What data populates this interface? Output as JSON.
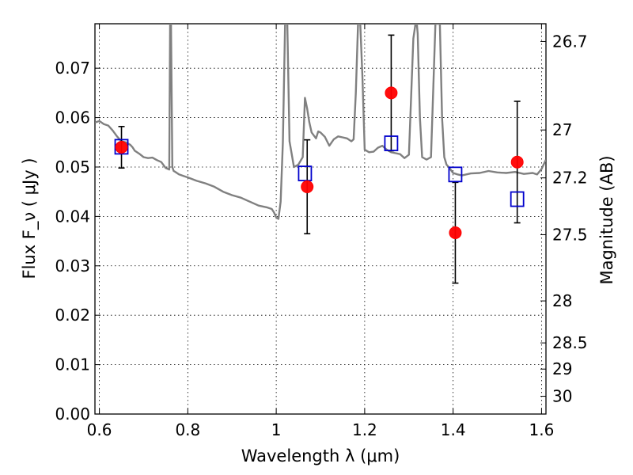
{
  "chart_data": {
    "type": "line",
    "xlabel": "Wavelength  λ (μm)",
    "ylabel": "Flux  F_ν ( μJy )",
    "ylabel_right": "Magnitude (AB)",
    "xlim": [
      0.59,
      1.61
    ],
    "ylim": [
      0.0,
      0.079
    ],
    "grid": true,
    "x_ticks": [
      0.6,
      0.8,
      1.0,
      1.2,
      1.4,
      1.6
    ],
    "x_tick_labels": [
      "0.6",
      "0.8",
      "1",
      "1.2",
      "1.4",
      "1.6"
    ],
    "y_ticks": [
      0.0,
      0.01,
      0.02,
      0.03,
      0.04,
      0.05,
      0.06,
      0.07
    ],
    "y_tick_labels": [
      "0.00",
      "0.01",
      "0.02",
      "0.03",
      "0.04",
      "0.05",
      "0.06",
      "0.07"
    ],
    "mag_ticks": [
      {
        "label": "26.7",
        "flux": 0.0754
      },
      {
        "label": "27",
        "flux": 0.0575
      },
      {
        "label": "27.2",
        "flux": 0.0478
      },
      {
        "label": "27.5",
        "flux": 0.0363
      },
      {
        "label": "28",
        "flux": 0.0229
      },
      {
        "label": "28.5",
        "flux": 0.0144
      },
      {
        "label": "29",
        "flux": 0.0091
      },
      {
        "label": "30",
        "flux": 0.0036
      }
    ],
    "series": [
      {
        "color": "#808080",
        "x": [
          0.59,
          0.6,
          0.61,
          0.62,
          0.63,
          0.64,
          0.65,
          0.66,
          0.67,
          0.675,
          0.68,
          0.69,
          0.7,
          0.71,
          0.72,
          0.73,
          0.74,
          0.75,
          0.758,
          0.76,
          0.762,
          0.765,
          0.768,
          0.772,
          0.78,
          0.79,
          0.8,
          0.82,
          0.84,
          0.86,
          0.88,
          0.9,
          0.92,
          0.94,
          0.96,
          0.98,
          0.99,
          0.995,
          1.0,
          1.005,
          1.01,
          1.015,
          1.02,
          1.022,
          1.025,
          1.03,
          1.04,
          1.05,
          1.06,
          1.065,
          1.07,
          1.075,
          1.08,
          1.09,
          1.095,
          1.1,
          1.11,
          1.12,
          1.13,
          1.14,
          1.15,
          1.16,
          1.17,
          1.175,
          1.18,
          1.185,
          1.19,
          1.195,
          1.2,
          1.21,
          1.22,
          1.23,
          1.24,
          1.25,
          1.26,
          1.27,
          1.28,
          1.29,
          1.3,
          1.31,
          1.315,
          1.318,
          1.32,
          1.325,
          1.33,
          1.34,
          1.35,
          1.36,
          1.37,
          1.375,
          1.38,
          1.385,
          1.39,
          1.4,
          1.41,
          1.42,
          1.44,
          1.46,
          1.48,
          1.5,
          1.52,
          1.54,
          1.56,
          1.58,
          1.59,
          1.6,
          1.61
        ],
        "y": [
          0.059,
          0.0593,
          0.0587,
          0.0584,
          0.0574,
          0.0562,
          0.0552,
          0.055,
          0.0545,
          0.054,
          0.0533,
          0.0527,
          0.052,
          0.0518,
          0.0519,
          0.0514,
          0.051,
          0.0498,
          0.0495,
          0.079,
          0.079,
          0.05,
          0.0492,
          0.049,
          0.0485,
          0.0482,
          0.0479,
          0.0472,
          0.0467,
          0.046,
          0.045,
          0.0443,
          0.0438,
          0.043,
          0.0422,
          0.0418,
          0.0415,
          0.0408,
          0.0398,
          0.0395,
          0.043,
          0.055,
          0.079,
          0.079,
          0.079,
          0.0552,
          0.05,
          0.0505,
          0.052,
          0.064,
          0.0618,
          0.059,
          0.057,
          0.0558,
          0.0572,
          0.057,
          0.0561,
          0.0543,
          0.0556,
          0.0562,
          0.056,
          0.0558,
          0.0552,
          0.0556,
          0.065,
          0.079,
          0.079,
          0.068,
          0.0535,
          0.053,
          0.0531,
          0.0539,
          0.0543,
          0.0535,
          0.053,
          0.0528,
          0.0526,
          0.0518,
          0.0525,
          0.076,
          0.079,
          0.079,
          0.077,
          0.06,
          0.052,
          0.0515,
          0.052,
          0.079,
          0.079,
          0.06,
          0.052,
          0.0505,
          0.05,
          0.0488,
          0.0485,
          0.0483,
          0.0487,
          0.0488,
          0.0492,
          0.0489,
          0.0488,
          0.049,
          0.0486,
          0.0488,
          0.0485,
          0.0496,
          0.0515
        ]
      }
    ],
    "observed_points": {
      "color": "#ff0000",
      "x": [
        0.65,
        1.07,
        1.26,
        1.405,
        1.545
      ],
      "y": [
        0.054,
        0.046,
        0.065,
        0.0367,
        0.051
      ],
      "yerr": [
        0.0042,
        0.0095,
        0.0117,
        0.0102,
        0.0123
      ]
    },
    "model_points": {
      "color": "#0000cc",
      "x": [
        0.65,
        1.065,
        1.26,
        1.405,
        1.545
      ],
      "y": [
        0.0541,
        0.0487,
        0.0548,
        0.0485,
        0.0435
      ]
    }
  }
}
